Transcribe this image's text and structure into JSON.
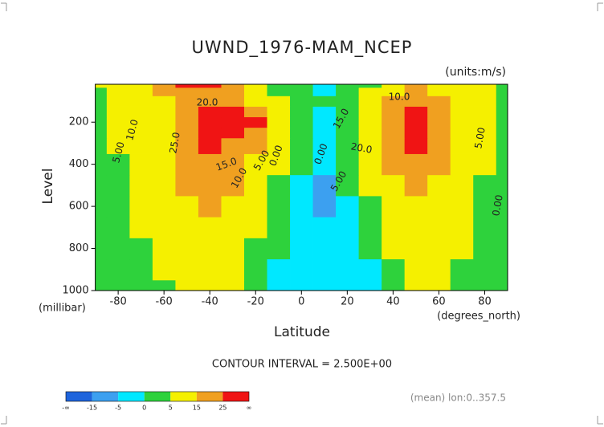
{
  "chart_data": {
    "type": "contour",
    "title": "UWND_1976-MAM_NCEP",
    "units": "(units:m/s)",
    "x_label": "Latitude",
    "x_unit": "(degrees_north)",
    "y_label": "Level",
    "y_unit": "(millibar)",
    "footer": "CONTOUR INTERVAL = 2.500E+00",
    "note": "(mean) lon:0..357.5",
    "xlim": [
      -90,
      90
    ],
    "xticks": [
      -80,
      -60,
      -40,
      -20,
      0,
      20,
      40,
      60,
      80
    ],
    "ylim": [
      1000,
      20
    ],
    "yticks": [
      200,
      400,
      600,
      800,
      1000
    ],
    "x": [
      -90,
      -80,
      -70,
      -60,
      -50,
      -40,
      -30,
      -20,
      -10,
      0,
      10,
      20,
      30,
      40,
      50,
      60,
      70,
      80,
      90
    ],
    "y": [
      1000,
      900,
      800,
      700,
      600,
      500,
      400,
      300,
      250,
      200,
      150,
      100,
      50,
      20
    ],
    "z": [
      [
        1,
        2,
        2,
        4,
        6,
        7,
        5,
        1,
        -3,
        -4,
        -3,
        -4,
        -2,
        3,
        6,
        6,
        3,
        1,
        0
      ],
      [
        1,
        2,
        3,
        5,
        8,
        9,
        7,
        2,
        -2,
        -3,
        -3,
        -3,
        -1,
        4,
        7,
        7,
        4,
        2,
        1
      ],
      [
        1,
        2,
        4,
        6,
        10,
        12,
        9,
        4,
        0,
        -3,
        -4,
        -3,
        0,
        5,
        9,
        8,
        5,
        3,
        1
      ],
      [
        1,
        3,
        5,
        7,
        12,
        14,
        11,
        5,
        1,
        -2,
        -5,
        -2,
        1,
        7,
        11,
        10,
        6,
        3,
        1
      ],
      [
        1,
        3,
        6,
        8,
        13,
        16,
        13,
        7,
        2,
        -2,
        -6,
        -1,
        3,
        9,
        14,
        12,
        7,
        3,
        1
      ],
      [
        1,
        3,
        6,
        9,
        15,
        18,
        16,
        10,
        4,
        -1,
        -6,
        0,
        5,
        12,
        17,
        14,
        8,
        4,
        1
      ],
      [
        1,
        4,
        7,
        10,
        17,
        22,
        19,
        13,
        6,
        0,
        -4,
        0,
        7,
        15,
        20,
        16,
        10,
        5,
        2
      ],
      [
        2,
        5,
        8,
        11,
        19,
        26,
        24,
        17,
        8,
        1,
        -2,
        1,
        9,
        20,
        25,
        19,
        12,
        7,
        3
      ],
      [
        2,
        5,
        8,
        12,
        20,
        27,
        27,
        22,
        10,
        2,
        -1,
        1,
        10,
        22,
        28,
        22,
        13,
        7,
        3
      ],
      [
        2,
        5,
        9,
        12,
        21,
        27,
        28,
        26,
        10,
        2,
        -1,
        2,
        11,
        23,
        30,
        24,
        13,
        7,
        3
      ],
      [
        2,
        5,
        9,
        13,
        21,
        26,
        25,
        20,
        8,
        1,
        -1,
        2,
        10,
        22,
        29,
        22,
        12,
        7,
        3
      ],
      [
        3,
        6,
        10,
        14,
        19,
        21,
        20,
        14,
        5,
        1,
        0,
        2,
        8,
        18,
        22,
        18,
        11,
        6,
        3
      ],
      [
        4,
        7,
        11,
        15,
        20,
        23,
        19,
        10,
        3,
        1,
        -1,
        1,
        5,
        14,
        17,
        14,
        10,
        6,
        3
      ],
      [
        5,
        8,
        12,
        18,
        25,
        27,
        22,
        12,
        2,
        0,
        -2,
        0,
        4,
        11,
        15,
        13,
        10,
        6,
        4
      ]
    ],
    "colorbar": {
      "ticks": [
        "-∞",
        -15,
        -5,
        0,
        5,
        15,
        25,
        "∞"
      ],
      "colors": [
        "#1e64dc",
        "#3ca0f0",
        "#00e8ff",
        "#2ed23c",
        "#f5f000",
        "#f0a020",
        "#f01414"
      ]
    },
    "contour_labels": [
      "20.0",
      "10.0",
      "5.00",
      "25.0",
      "15.0",
      "10.0",
      "5.00",
      "0.00",
      "10.0",
      "15.0",
      "20.0",
      "0.00",
      "5.00",
      "5.00",
      "0.00"
    ]
  }
}
